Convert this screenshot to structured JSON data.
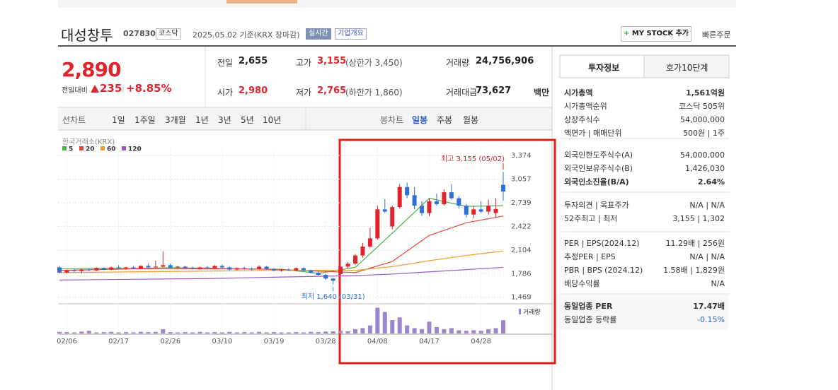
{
  "header": {
    "name": "대성창투",
    "code": "027830",
    "market": "코스닥",
    "date": "2025.05.02 기준(KRX 장마감)",
    "realtime": "실시간",
    "overview": "기업개요",
    "mystock": "MY STOCK 추가",
    "quick_order": "빠른주문"
  },
  "quote": {
    "price": "2,890",
    "change_label": "전일대비",
    "change": "235",
    "change_rate": "+8.85%",
    "fields": [
      {
        "label": "전일",
        "value": "2,655"
      },
      {
        "label": "고가",
        "value": "3,155",
        "extra": "(상한가 3,450)"
      },
      {
        "label": "거래량",
        "value": "24,756,906"
      },
      {
        "label": "시가",
        "value": "2,980"
      },
      {
        "label": "저가",
        "value": "2,765",
        "extra": "(하한가 1,860)"
      },
      {
        "label": "거래대금",
        "value": "73,627",
        "unit": "백만"
      }
    ]
  },
  "tabs": {
    "line": [
      "선차트",
      "1일",
      "1주일",
      "3개월",
      "1년",
      "3년",
      "5년",
      "10년"
    ],
    "candle": [
      "봉차트",
      "일봉",
      "주봉",
      "월봉"
    ]
  },
  "chart_data": {
    "type": "candlestick",
    "source": "한국거래소(KRX)",
    "categories": [
      null,
      "02/06",
      null,
      null,
      null,
      null,
      null,
      null,
      "02/17",
      null,
      null,
      null,
      null,
      null,
      null,
      "02/26",
      null,
      null,
      null,
      null,
      null,
      null,
      "03/10",
      null,
      null,
      null,
      null,
      null,
      null,
      "03/19",
      null,
      null,
      null,
      null,
      null,
      null,
      "03/28",
      null,
      null,
      null,
      null,
      null,
      null,
      "04/08",
      null,
      null,
      null,
      null,
      null,
      null,
      "04/17",
      null,
      null,
      null,
      null,
      null,
      null,
      "04/28",
      null,
      null,
      null
    ],
    "open": [
      1870,
      1800,
      1830,
      1820,
      1840,
      1830,
      1860,
      1840,
      1870,
      1860,
      1870,
      1855,
      1890,
      1870,
      1880,
      1900,
      1870,
      1880,
      1860,
      1850,
      1870,
      1860,
      1890,
      1870,
      1840,
      1860,
      1850,
      1845,
      1880,
      1850,
      1830,
      1840,
      1830,
      1860,
      1830,
      1800,
      1770,
      1720,
      1780,
      1880,
      1920,
      2030,
      2150,
      2260,
      2650,
      2420,
      2680,
      2950,
      2840,
      2700,
      2600,
      2760,
      2720,
      2880,
      2800,
      2700,
      2580,
      2650,
      2620,
      2600,
      2980
    ],
    "high": [
      1890,
      1840,
      1850,
      1850,
      1860,
      1870,
      1870,
      1880,
      1900,
      1880,
      1890,
      1900,
      1920,
      1960,
      2090,
      1920,
      1890,
      1890,
      1880,
      1880,
      1890,
      1900,
      1910,
      1880,
      1870,
      1880,
      1870,
      1900,
      1890,
      1860,
      1850,
      1860,
      1870,
      1870,
      1840,
      1820,
      1780,
      1730,
      1900,
      1940,
      2050,
      2200,
      2400,
      2700,
      2790,
      2700,
      2990,
      3010,
      2950,
      2760,
      2800,
      2860,
      2920,
      2990,
      2830,
      2720,
      2700,
      2760,
      2780,
      2800,
      3155
    ],
    "low": [
      1790,
      1790,
      1810,
      1790,
      1820,
      1820,
      1830,
      1830,
      1850,
      1840,
      1850,
      1850,
      1860,
      1860,
      1870,
      1860,
      1850,
      1850,
      1840,
      1840,
      1850,
      1850,
      1860,
      1830,
      1830,
      1840,
      1830,
      1840,
      1840,
      1820,
      1810,
      1820,
      1820,
      1820,
      1790,
      1760,
      1700,
      1640,
      1760,
      1860,
      1900,
      2000,
      2130,
      2240,
      2600,
      2380,
      2660,
      2800,
      2650,
      2560,
      2560,
      2700,
      2700,
      2780,
      2660,
      2540,
      2530,
      2600,
      2580,
      2540,
      2765
    ],
    "close": [
      1800,
      1830,
      1820,
      1840,
      1830,
      1860,
      1840,
      1870,
      1860,
      1870,
      1855,
      1890,
      1870,
      1880,
      1900,
      1870,
      1880,
      1860,
      1850,
      1870,
      1860,
      1890,
      1870,
      1840,
      1860,
      1850,
      1845,
      1880,
      1850,
      1830,
      1840,
      1830,
      1860,
      1830,
      1800,
      1770,
      1720,
      1690,
      1880,
      1920,
      2030,
      2150,
      2260,
      2650,
      2620,
      2680,
      2950,
      2840,
      2700,
      2600,
      2760,
      2720,
      2880,
      2800,
      2700,
      2580,
      2650,
      2620,
      2700,
      2655,
      2890
    ],
    "up_color": "#e0242e",
    "down_color": "#2f6fd8",
    "ylim": [
      1390,
      3470
    ],
    "yticks": [
      {
        "value": 3374,
        "label": "3,374"
      },
      {
        "value": 3057,
        "label": "3,057"
      },
      {
        "value": 2739,
        "label": "2,739"
      },
      {
        "value": 2422,
        "label": "2,422"
      },
      {
        "value": 2104,
        "label": "2,104"
      },
      {
        "value": 1786,
        "label": "1,786"
      },
      {
        "value": 1469,
        "label": "1,469"
      }
    ],
    "grid": true,
    "ma": [
      {
        "name": "5",
        "color": "#4caf50",
        "x": [
          0,
          5,
          10,
          15,
          20,
          25,
          30,
          35,
          40,
          45,
          50,
          55,
          60
        ],
        "values": [
          1850,
          1860,
          1855,
          1865,
          1860,
          1850,
          1845,
          1790,
          1870,
          2330,
          2800,
          2690,
          2700
        ]
      },
      {
        "name": "20",
        "color": "#e8463c",
        "x": [
          0,
          5,
          10,
          15,
          20,
          25,
          30,
          35,
          40,
          45,
          50,
          55,
          60
        ],
        "values": [
          1830,
          1840,
          1850,
          1855,
          1850,
          1850,
          1840,
          1820,
          1800,
          1950,
          2300,
          2470,
          2560
        ]
      },
      {
        "name": "60",
        "color": "#f29b2b",
        "x": [
          0,
          5,
          10,
          15,
          20,
          25,
          30,
          35,
          40,
          45,
          50,
          55,
          60
        ],
        "values": [
          1800,
          1805,
          1810,
          1815,
          1820,
          1825,
          1830,
          1830,
          1830,
          1880,
          1960,
          2030,
          2090
        ]
      },
      {
        "name": "120",
        "color": "#9b59c6",
        "x": [
          0,
          5,
          10,
          15,
          20,
          25,
          30,
          35,
          40,
          45,
          50,
          55,
          60
        ],
        "values": [
          1700,
          1705,
          1710,
          1715,
          1720,
          1730,
          1740,
          1750,
          1760,
          1780,
          1810,
          1840,
          1870
        ]
      }
    ],
    "volume": {
      "name": "거래량",
      "color": "#9d86cc",
      "values": [
        3000000,
        2500000,
        2000000,
        3500000,
        5000000,
        2000000,
        2500000,
        3000000,
        2000000,
        2500000,
        2000000,
        3000000,
        2500000,
        3000000,
        8000000,
        2500000,
        2000000,
        2500000,
        2000000,
        3000000,
        2000000,
        2500000,
        2000000,
        3000000,
        2000000,
        2500000,
        2000000,
        3000000,
        2000000,
        2500000,
        2000000,
        2000000,
        2500000,
        2000000,
        3000000,
        2500000,
        3500000,
        4000000,
        5000000,
        4000000,
        8000000,
        10000000,
        15000000,
        48000000,
        40000000,
        25000000,
        30000000,
        15000000,
        10000000,
        8000000,
        22000000,
        12000000,
        8000000,
        10000000,
        6000000,
        5000000,
        6000000,
        5000000,
        8000000,
        10000000,
        24756906
      ]
    },
    "high_note": "최고 3,155 (05/02)",
    "low_note": "최저 1,640 (03/31)"
  },
  "info": {
    "tabs": [
      "투자정보",
      "호가10단계"
    ],
    "groups": [
      [
        {
          "label": "시가총액",
          "value": "1,561억원",
          "bold": true
        },
        {
          "label": "시가총액순위",
          "value": "코스닥 505위"
        },
        {
          "label": "상장주식수",
          "value": "54,000,000"
        },
        {
          "label": "액면가 | 매매단위",
          "value": "500원 | 1주"
        }
      ],
      [
        {
          "label": "외국인한도주식수(A)",
          "value": "54,000,000"
        },
        {
          "label": "외국인보유주식수(B)",
          "value": "1,426,030"
        },
        {
          "label": "외국인소진율(B/A)",
          "value": "2.64%",
          "bold": true
        }
      ],
      [
        {
          "label": "투자의견 | 목표주가",
          "value": "N/A | N/A"
        },
        {
          "label": "52주최고 | 최저",
          "value": "3,155 | 1,302"
        }
      ],
      [
        {
          "label": "PER | EPS(2024.12)",
          "value": "11.29배 | 256원"
        },
        {
          "label": "추정PER | EPS",
          "value": "N/A | N/A"
        },
        {
          "label": "PBR | BPS (2024.12)",
          "value": "1.58배 | 1,829원"
        },
        {
          "label": "배당수익률",
          "value": "N/A"
        }
      ],
      [
        {
          "label": "동일업종 PER",
          "value": "17.47배",
          "bold": true
        },
        {
          "label": "동일업종 등락률",
          "value": "-0.15%",
          "down": true
        }
      ]
    ]
  }
}
